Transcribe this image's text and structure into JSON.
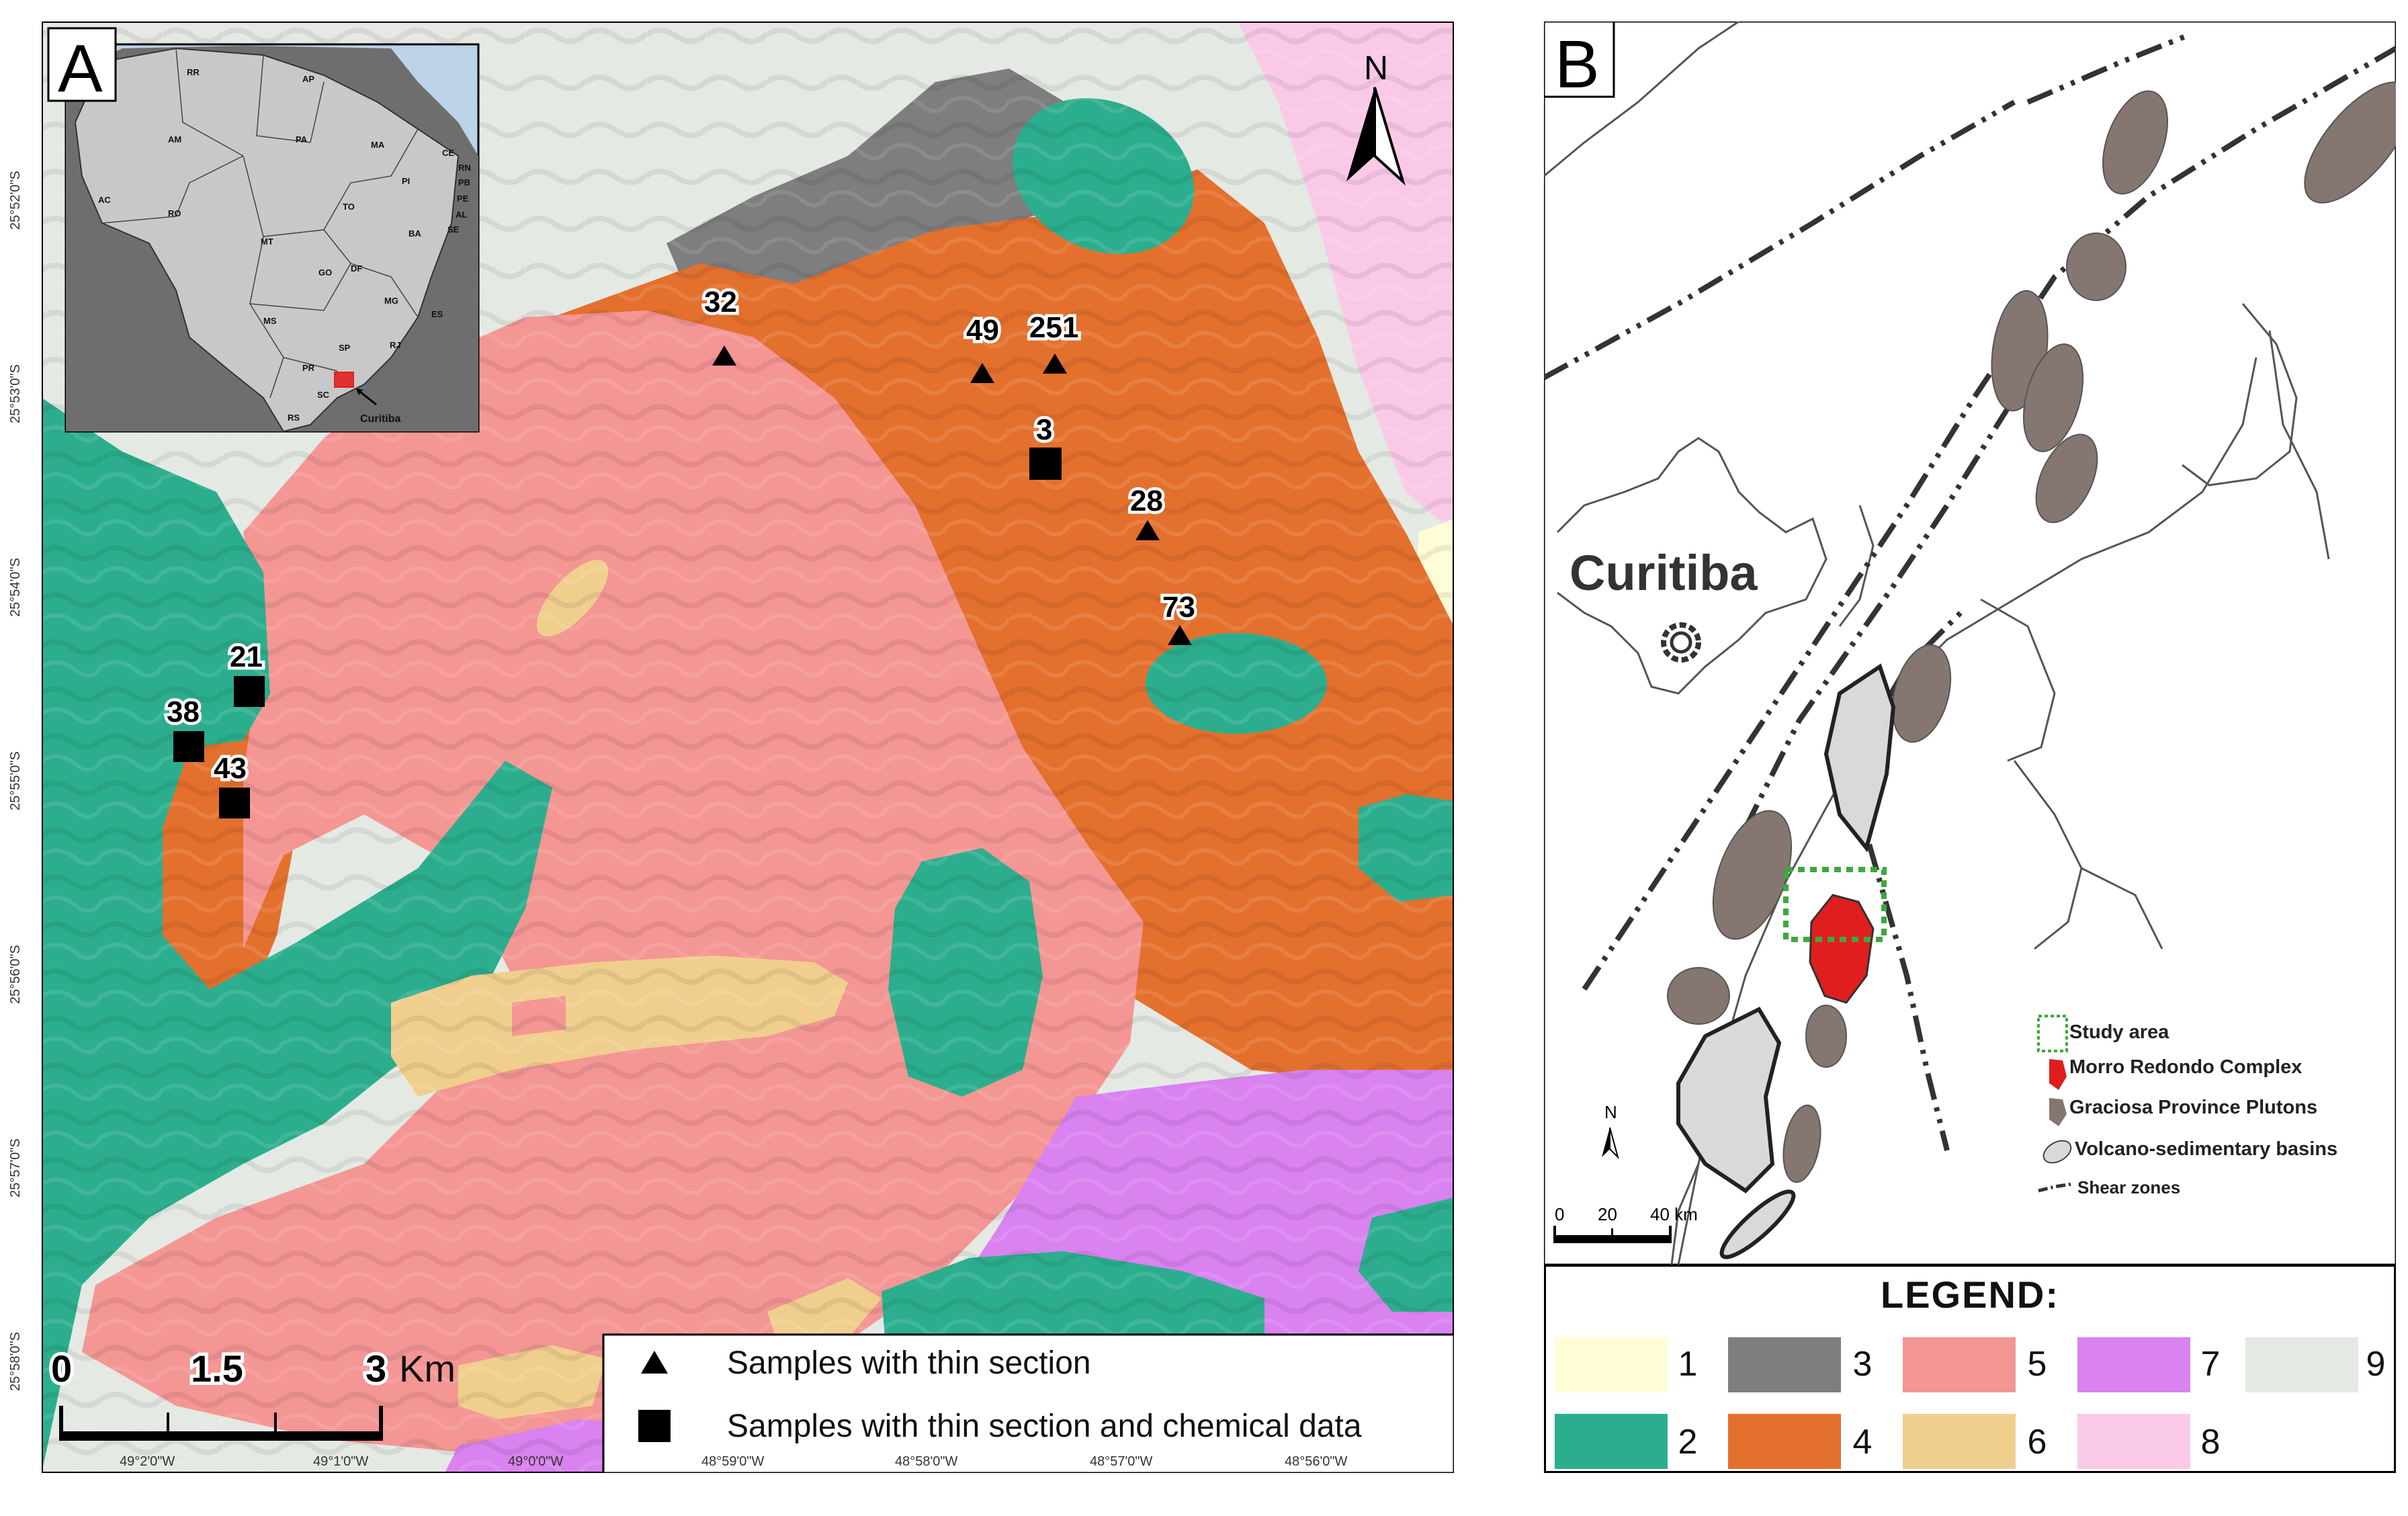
{
  "panel_a": {
    "letter": "A",
    "north": "N",
    "scale_labels": [
      "0",
      "1.5",
      "3",
      "Km"
    ],
    "lat_labels": [
      "25°52'0\"S",
      "25°53'0\"S",
      "25°54'0\"S",
      "25°55'0\"S",
      "25°56'0\"S",
      "25°57'0\"S",
      "25°58'0\"S"
    ],
    "lon_labels": [
      "49°2'0\"W",
      "49°1'0\"W",
      "49°0'0\"W",
      "48°59'0\"W",
      "48°58'0\"W",
      "48°57'0\"W",
      "48°56'0\"W"
    ],
    "samples": [
      {
        "id": "32",
        "type": "triangle"
      },
      {
        "id": "49",
        "type": "triangle"
      },
      {
        "id": "251",
        "type": "triangle"
      },
      {
        "id": "3",
        "type": "square"
      },
      {
        "id": "28",
        "type": "triangle"
      },
      {
        "id": "73",
        "type": "triangle"
      },
      {
        "id": "21",
        "type": "square"
      },
      {
        "id": "38",
        "type": "square"
      },
      {
        "id": "43",
        "type": "square"
      }
    ],
    "symbol_legend": {
      "triangle": "Samples with thin section",
      "square": "Samples with thin section and chemical data"
    },
    "inset_states": [
      "RR",
      "AP",
      "AM",
      "PA",
      "MA",
      "CE",
      "RN",
      "PB",
      "PE",
      "PI",
      "AL",
      "SE",
      "AC",
      "RO",
      "TO",
      "BA",
      "MT",
      "GO",
      "DF",
      "MG",
      "ES",
      "MS",
      "SP",
      "RJ",
      "PR",
      "SC",
      "RS"
    ],
    "inset_city": "Curitiba",
    "unit_colors": {
      "1": "#FFFDD5",
      "2": "#2CAE8E",
      "3": "#7E7E7E",
      "4": "#E4702E",
      "5": "#F49694",
      "6": "#F0CF8E",
      "7": "#D982F0",
      "8": "#FAC9E8",
      "9": "#E4E9E3"
    }
  },
  "panel_b": {
    "letter": "B",
    "city": "Curitiba",
    "north": "N",
    "scale_labels": [
      "0",
      "20",
      "40 km"
    ],
    "map_legend": [
      {
        "key": "study_area",
        "label": "Study area"
      },
      {
        "key": "morro_redondo",
        "label": "Morro Redondo Complex",
        "color": "#E01E1E"
      },
      {
        "key": "graciosa",
        "label": "Graciosa Province Plutons",
        "color": "#857672"
      },
      {
        "key": "basins",
        "label": "Volcano-sedimentary basins",
        "color": "#D9D9D9"
      },
      {
        "key": "shear",
        "label": "Shear zones"
      }
    ],
    "legend_title": "LEGEND:",
    "legend_units": [
      {
        "num": "1",
        "color": "#FFFDD5"
      },
      {
        "num": "3",
        "color": "#7E7E7E"
      },
      {
        "num": "5",
        "color": "#F49694"
      },
      {
        "num": "7",
        "color": "#D982F0"
      },
      {
        "num": "9",
        "color": "#E4E9E3"
      },
      {
        "num": "2",
        "color": "#2CAE8E"
      },
      {
        "num": "4",
        "color": "#E4702E"
      },
      {
        "num": "6",
        "color": "#F0CF8E"
      },
      {
        "num": "8",
        "color": "#FAC9E8"
      }
    ]
  }
}
